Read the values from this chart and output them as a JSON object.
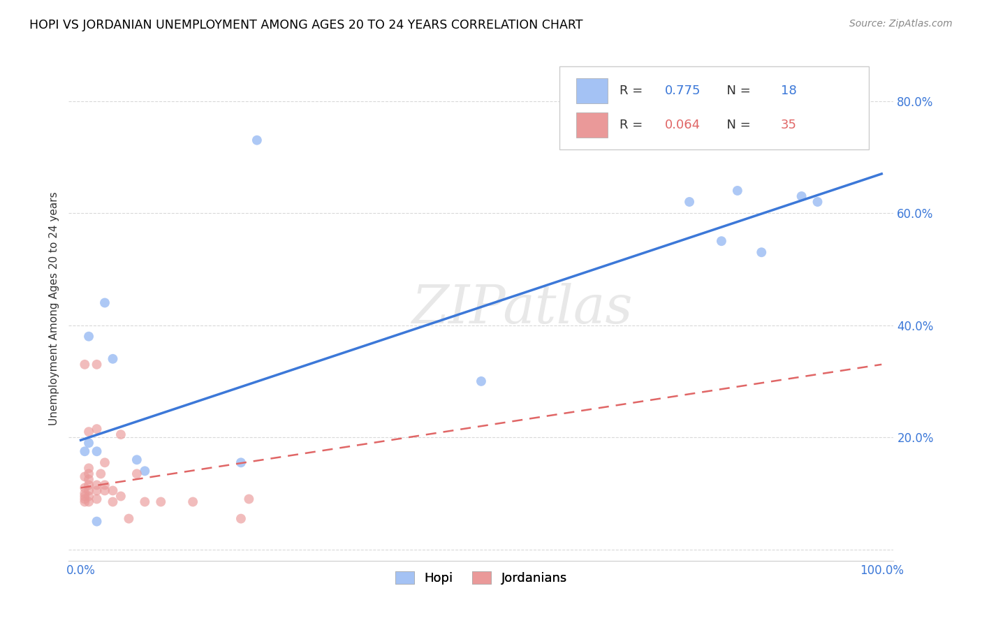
{
  "title": "HOPI VS JORDANIAN UNEMPLOYMENT AMONG AGES 20 TO 24 YEARS CORRELATION CHART",
  "source": "Source: ZipAtlas.com",
  "ylabel": "Unemployment Among Ages 20 to 24 years",
  "legend_hopi_R": "0.775",
  "legend_hopi_N": "18",
  "legend_jordanian_R": "0.064",
  "legend_jordanian_N": "35",
  "legend_hopi_label": "Hopi",
  "legend_jordanian_label": "Jordanians",
  "hopi_color": "#a4c2f4",
  "jordanian_color": "#ea9999",
  "text_color": "#3c78d8",
  "jordanian_text_color": "#e06666",
  "hopi_line_color": "#3c78d8",
  "jordanian_line_color": "#e06666",
  "watermark": "ZIPatlas",
  "hopi_x": [
    0.22,
    0.03,
    0.01,
    0.02,
    0.04,
    0.07,
    0.08,
    0.5,
    0.76,
    0.8,
    0.82,
    0.85,
    0.9,
    0.92,
    0.02,
    0.01,
    0.2,
    0.005
  ],
  "hopi_y": [
    0.73,
    0.44,
    0.38,
    0.175,
    0.34,
    0.16,
    0.14,
    0.3,
    0.62,
    0.55,
    0.64,
    0.53,
    0.63,
    0.62,
    0.05,
    0.19,
    0.155,
    0.175
  ],
  "jordanian_x": [
    0.005,
    0.005,
    0.005,
    0.005,
    0.005,
    0.005,
    0.01,
    0.01,
    0.01,
    0.01,
    0.01,
    0.01,
    0.01,
    0.01,
    0.02,
    0.02,
    0.02,
    0.02,
    0.02,
    0.03,
    0.03,
    0.03,
    0.04,
    0.04,
    0.05,
    0.05,
    0.06,
    0.07,
    0.08,
    0.1,
    0.14,
    0.2,
    0.21,
    0.025,
    0.005
  ],
  "jordanian_y": [
    0.085,
    0.09,
    0.095,
    0.1,
    0.11,
    0.13,
    0.085,
    0.095,
    0.105,
    0.115,
    0.125,
    0.135,
    0.145,
    0.21,
    0.09,
    0.105,
    0.115,
    0.215,
    0.33,
    0.105,
    0.115,
    0.155,
    0.085,
    0.105,
    0.095,
    0.205,
    0.055,
    0.135,
    0.085,
    0.085,
    0.085,
    0.055,
    0.09,
    0.135,
    0.33
  ],
  "hopi_line_x": [
    0.0,
    1.0
  ],
  "hopi_line_y": [
    0.195,
    0.67
  ],
  "jord_line_x": [
    0.0,
    1.0
  ],
  "jord_line_y": [
    0.11,
    0.33
  ],
  "marker_size": 100,
  "background_color": "#ffffff",
  "grid_color": "#d0d0d0",
  "xlim": [
    -0.015,
    1.015
  ],
  "ylim": [
    -0.02,
    0.88
  ],
  "y_ticks": [
    0.0,
    0.2,
    0.4,
    0.6,
    0.8
  ],
  "y_tick_labels": [
    "",
    "20.0%",
    "40.0%",
    "60.0%",
    "80.0%"
  ],
  "x_ticks": [
    0.0,
    0.1,
    0.2,
    0.3,
    0.4,
    0.5,
    0.6,
    0.7,
    0.8,
    0.9,
    1.0
  ],
  "x_tick_labels": [
    "0.0%",
    "",
    "",
    "",
    "",
    "",
    "",
    "",
    "",
    "",
    "100.0%"
  ]
}
